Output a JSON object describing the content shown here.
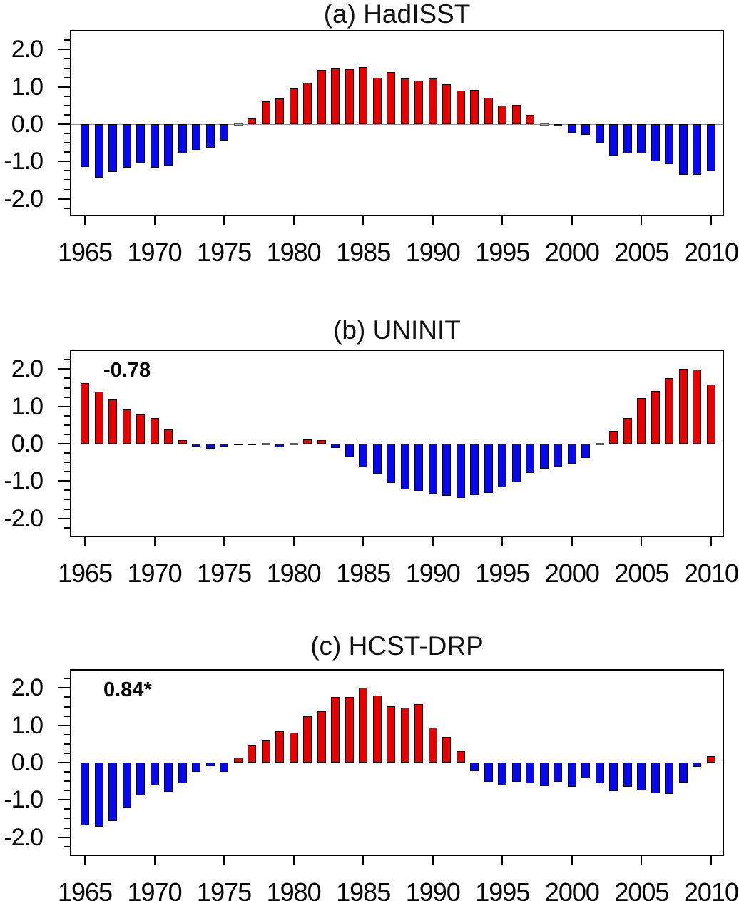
{
  "figure": {
    "background": "#ffffff"
  },
  "style": {
    "positive_color": "#e60000",
    "negative_color": "#0808ee",
    "near_zero_color": "#b4b4b4",
    "zero_line_color": "#909090",
    "frame_color": "#000000",
    "text_color": "#000000"
  },
  "chart_data": [
    {
      "type": "bar",
      "title": "(a) HadISST",
      "annotation": "",
      "x": [
        1965,
        1966,
        1967,
        1968,
        1969,
        1970,
        1971,
        1972,
        1973,
        1974,
        1975,
        1976,
        1977,
        1978,
        1979,
        1980,
        1981,
        1982,
        1983,
        1984,
        1985,
        1986,
        1987,
        1988,
        1989,
        1990,
        1991,
        1992,
        1993,
        1994,
        1995,
        1996,
        1997,
        1998,
        1999,
        2000,
        2001,
        2002,
        2003,
        2004,
        2005,
        2006,
        2007,
        2008,
        2009,
        2010
      ],
      "values": [
        -1.14,
        -1.44,
        -1.28,
        -1.16,
        -1.03,
        -1.16,
        -1.1,
        -0.79,
        -0.69,
        -0.64,
        -0.44,
        0.02,
        0.15,
        0.62,
        0.68,
        0.96,
        1.11,
        1.46,
        1.5,
        1.48,
        1.53,
        1.25,
        1.39,
        1.23,
        1.17,
        1.22,
        1.08,
        0.89,
        0.92,
        0.71,
        0.5,
        0.51,
        0.24,
        0.02,
        -0.06,
        -0.22,
        -0.29,
        -0.49,
        -0.84,
        -0.78,
        -0.79,
        -0.99,
        -1.08,
        -1.36,
        -1.35,
        -1.27
      ],
      "xlabel": "",
      "ylabel": "",
      "ylim": [
        -2.5,
        2.53
      ],
      "yticks": [
        2.0,
        1.0,
        0.0,
        -1.0,
        -2.0
      ],
      "ytick_labels": [
        "2.0",
        "1.0",
        "0.0",
        "-1.0",
        "-2.0"
      ],
      "y_minor_step": 0.25,
      "xticks": [
        1965,
        1970,
        1975,
        1980,
        1985,
        1990,
        1995,
        2000,
        2005,
        2010
      ],
      "xtick_labels": [
        "1965",
        "1970",
        "1975",
        "1980",
        "1985",
        "1990",
        "1995",
        "2000",
        "2005",
        "2010"
      ],
      "grid": false,
      "legend": "none"
    },
    {
      "type": "bar",
      "title": "(b) UNINIT",
      "annotation": "-0.78",
      "x": [
        1965,
        1966,
        1967,
        1968,
        1969,
        1970,
        1971,
        1972,
        1973,
        1974,
        1975,
        1976,
        1977,
        1978,
        1979,
        1980,
        1981,
        1982,
        1983,
        1984,
        1985,
        1986,
        1987,
        1988,
        1989,
        1990,
        1991,
        1992,
        1993,
        1994,
        1995,
        1996,
        1997,
        1998,
        1999,
        2000,
        2001,
        2002,
        2003,
        2004,
        2005,
        2006,
        2007,
        2008,
        2009,
        2010
      ],
      "values": [
        1.62,
        1.4,
        1.19,
        0.91,
        0.78,
        0.69,
        0.38,
        0.1,
        -0.08,
        -0.13,
        -0.08,
        -0.03,
        -0.03,
        0.01,
        -0.1,
        0.01,
        0.12,
        0.1,
        -0.11,
        -0.35,
        -0.64,
        -0.81,
        -1.06,
        -1.22,
        -1.26,
        -1.34,
        -1.4,
        -1.46,
        -1.38,
        -1.31,
        -1.17,
        -1.04,
        -0.79,
        -0.66,
        -0.61,
        -0.53,
        -0.38,
        -0.02,
        0.35,
        0.69,
        1.22,
        1.42,
        1.76,
        2.01,
        1.98,
        1.59
      ],
      "xlabel": "",
      "ylabel": "",
      "ylim": [
        -2.5,
        2.53
      ],
      "yticks": [
        2.0,
        1.0,
        0.0,
        -1.0,
        -2.0
      ],
      "ytick_labels": [
        "2.0",
        "1.0",
        "0.0",
        "-1.0",
        "-2.0"
      ],
      "y_minor_step": 0.25,
      "xticks": [
        1965,
        1970,
        1975,
        1980,
        1985,
        1990,
        1995,
        2000,
        2005,
        2010
      ],
      "xtick_labels": [
        "1965",
        "1970",
        "1975",
        "1980",
        "1985",
        "1990",
        "1995",
        "2000",
        "2005",
        "2010"
      ],
      "grid": false,
      "legend": "none"
    },
    {
      "type": "bar",
      "title": "(c) HCST-DRP",
      "annotation": "0.84*",
      "x": [
        1965,
        1966,
        1967,
        1968,
        1969,
        1970,
        1971,
        1972,
        1973,
        1974,
        1975,
        1976,
        1977,
        1978,
        1979,
        1980,
        1981,
        1982,
        1983,
        1984,
        1985,
        1986,
        1987,
        1988,
        1989,
        1990,
        1991,
        1992,
        1993,
        1994,
        1995,
        1996,
        1997,
        1998,
        1999,
        2000,
        2001,
        2002,
        2003,
        2004,
        2005,
        2006,
        2007,
        2008,
        2009,
        2010
      ],
      "values": [
        -1.69,
        -1.73,
        -1.57,
        -1.2,
        -0.88,
        -0.61,
        -0.78,
        -0.55,
        -0.24,
        -0.1,
        -0.24,
        0.14,
        0.45,
        0.59,
        0.84,
        0.81,
        1.24,
        1.38,
        1.76,
        1.75,
        2.01,
        1.8,
        1.52,
        1.48,
        1.56,
        0.94,
        0.69,
        0.3,
        -0.23,
        -0.51,
        -0.61,
        -0.52,
        -0.56,
        -0.64,
        -0.51,
        -0.65,
        -0.42,
        -0.55,
        -0.76,
        -0.65,
        -0.74,
        -0.83,
        -0.85,
        -0.53,
        -0.11,
        0.17
      ],
      "xlabel": "",
      "ylabel": "",
      "ylim": [
        -2.5,
        2.53
      ],
      "yticks": [
        2.0,
        1.0,
        0.0,
        -1.0,
        -2.0
      ],
      "ytick_labels": [
        "2.0",
        "1.0",
        "0.0",
        "-1.0",
        "-2.0"
      ],
      "y_minor_step": 0.25,
      "xticks": [
        1965,
        1970,
        1975,
        1980,
        1985,
        1990,
        1995,
        2000,
        2005,
        2010
      ],
      "xtick_labels": [
        "1965",
        "1970",
        "1975",
        "1980",
        "1985",
        "1990",
        "1995",
        "2000",
        "2005",
        "2010"
      ],
      "grid": false,
      "legend": "none"
    }
  ]
}
